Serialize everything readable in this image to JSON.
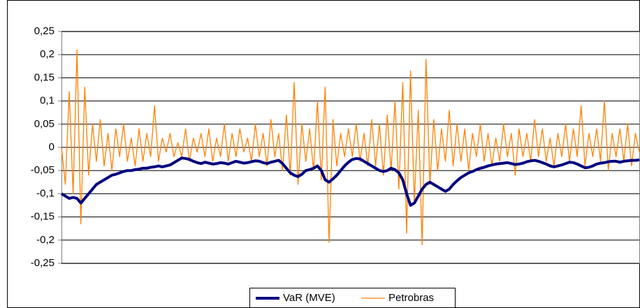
{
  "chart_data": {
    "type": "line",
    "ylim": [
      -0.25,
      0.25
    ],
    "yticks": [
      {
        "value": -0.25,
        "label": "-0,25"
      },
      {
        "value": -0.2,
        "label": "-0,2"
      },
      {
        "value": -0.15,
        "label": "-0,15"
      },
      {
        "value": -0.1,
        "label": "-0,1"
      },
      {
        "value": -0.05,
        "label": "-0,05"
      },
      0,
      {
        "value": 0.05,
        "label": "0,05"
      },
      {
        "value": 0.1,
        "label": "0,1"
      },
      {
        "value": 0.15,
        "label": "0,15"
      },
      {
        "value": 0.2,
        "label": "0,2"
      },
      {
        "value": 0.25,
        "label": "0,25"
      }
    ],
    "grid": true,
    "legend": "bottom",
    "series": [
      {
        "name": "VaR (MVE)",
        "color": "#000080",
        "width": 4,
        "values": [
          -0.1,
          -0.105,
          -0.11,
          -0.108,
          -0.11,
          -0.12,
          -0.11,
          -0.1,
          -0.09,
          -0.08,
          -0.075,
          -0.07,
          -0.065,
          -0.06,
          -0.058,
          -0.055,
          -0.052,
          -0.05,
          -0.05,
          -0.048,
          -0.047,
          -0.045,
          -0.045,
          -0.043,
          -0.042,
          -0.04,
          -0.042,
          -0.04,
          -0.038,
          -0.033,
          -0.028,
          -0.023,
          -0.024,
          -0.026,
          -0.03,
          -0.033,
          -0.035,
          -0.032,
          -0.034,
          -0.036,
          -0.035,
          -0.033,
          -0.034,
          -0.036,
          -0.033,
          -0.03,
          -0.032,
          -0.034,
          -0.033,
          -0.031,
          -0.029,
          -0.03,
          -0.033,
          -0.035,
          -0.032,
          -0.03,
          -0.028,
          -0.035,
          -0.045,
          -0.055,
          -0.06,
          -0.063,
          -0.058,
          -0.05,
          -0.048,
          -0.045,
          -0.04,
          -0.05,
          -0.07,
          -0.075,
          -0.068,
          -0.06,
          -0.05,
          -0.04,
          -0.032,
          -0.026,
          -0.024,
          -0.025,
          -0.03,
          -0.035,
          -0.04,
          -0.045,
          -0.05,
          -0.052,
          -0.05,
          -0.045,
          -0.048,
          -0.055,
          -0.07,
          -0.1,
          -0.125,
          -0.12,
          -0.105,
          -0.09,
          -0.08,
          -0.075,
          -0.08,
          -0.085,
          -0.09,
          -0.095,
          -0.09,
          -0.08,
          -0.072,
          -0.065,
          -0.06,
          -0.055,
          -0.052,
          -0.048,
          -0.045,
          -0.043,
          -0.04,
          -0.038,
          -0.036,
          -0.035,
          -0.034,
          -0.033,
          -0.035,
          -0.037,
          -0.036,
          -0.034,
          -0.031,
          -0.029,
          -0.028,
          -0.03,
          -0.033,
          -0.036,
          -0.04,
          -0.042,
          -0.04,
          -0.038,
          -0.035,
          -0.032,
          -0.033,
          -0.036,
          -0.04,
          -0.044,
          -0.043,
          -0.04,
          -0.036,
          -0.034,
          -0.033,
          -0.031,
          -0.03,
          -0.03,
          -0.032,
          -0.03,
          -0.029,
          -0.028,
          -0.028,
          -0.027
        ]
      },
      {
        "name": "Petrobras",
        "color": "#ff8000",
        "width": 1.3,
        "values": [
          0,
          -0.08,
          0.12,
          -0.1,
          0.21,
          -0.165,
          0.13,
          -0.06,
          0.05,
          -0.03,
          0.06,
          -0.04,
          0.03,
          -0.05,
          0.04,
          -0.02,
          0.05,
          -0.03,
          0.02,
          -0.04,
          0.04,
          -0.03,
          0.03,
          -0.02,
          0.09,
          -0.03,
          0.02,
          -0.01,
          0.03,
          -0.02,
          0.01,
          -0.02,
          0.04,
          -0.03,
          0.02,
          -0.01,
          0.03,
          -0.02,
          0.04,
          -0.03,
          0.02,
          -0.02,
          0.05,
          -0.03,
          0.03,
          -0.02,
          0.04,
          -0.01,
          0.02,
          -0.03,
          0.05,
          -0.02,
          0.03,
          -0.04,
          0.06,
          -0.02,
          0.03,
          -0.05,
          0.07,
          -0.06,
          0.14,
          -0.08,
          0.05,
          -0.03,
          0.04,
          -0.05,
          0.1,
          -0.07,
          0.13,
          -0.205,
          0.06,
          -0.04,
          0.03,
          -0.02,
          0.04,
          -0.02,
          0.05,
          -0.03,
          0.03,
          -0.04,
          0.06,
          -0.04,
          0.05,
          -0.06,
          0.07,
          -0.05,
          0.1,
          -0.09,
          0.14,
          -0.185,
          0.165,
          -0.12,
          0.08,
          -0.21,
          0.19,
          -0.08,
          0.06,
          -0.05,
          0.04,
          -0.03,
          0.08,
          -0.04,
          0.05,
          -0.03,
          0.04,
          -0.05,
          0.03,
          -0.02,
          0.05,
          -0.03,
          0.03,
          -0.04,
          0.02,
          -0.03,
          0.05,
          -0.02,
          0.03,
          -0.06,
          0.04,
          -0.02,
          0.03,
          -0.03,
          0.06,
          -0.02,
          0.04,
          -0.03,
          0.02,
          -0.04,
          0.03,
          -0.02,
          0.05,
          -0.03,
          0.04,
          -0.02,
          0.09,
          -0.04,
          0.03,
          -0.02,
          0.04,
          -0.03,
          0.1,
          -0.05,
          0.03,
          -0.02,
          0.04,
          -0.03,
          0.05,
          -0.04,
          0.03,
          -0.01
        ]
      }
    ]
  }
}
